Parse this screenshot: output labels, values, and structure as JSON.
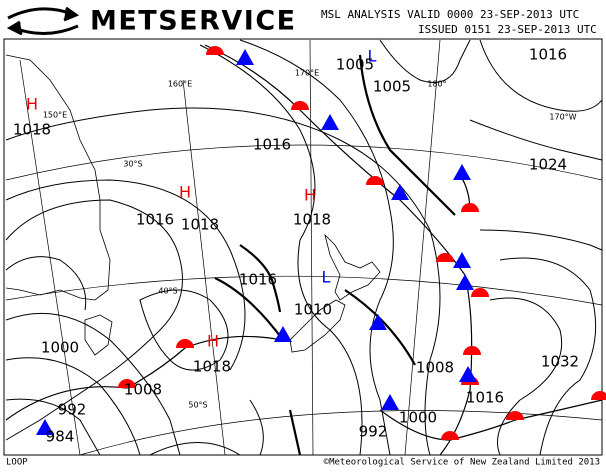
{
  "header": {
    "logo": "METSERVICE",
    "title": "MSL ANALYSIS VALID 0000 23-SEP-2013 UTC",
    "issued": "ISSUED 0151 23-SEP-2013 UTC"
  },
  "highs": [
    "H",
    "H",
    "H",
    "H"
  ],
  "lows": [
    "L",
    "L"
  ],
  "isobar_labels": [
    "1016",
    "1005",
    "1005",
    "1018",
    "1016",
    "1024",
    "1016",
    "1018",
    "1018",
    "1016",
    "1010",
    "1000",
    "1018",
    "1008",
    "1008",
    "1032",
    "1016",
    "992",
    "984",
    "1000",
    "992"
  ],
  "grid_labels": [
    "160°E",
    "170°E",
    "180°",
    "170°W",
    "30°S",
    "40°S",
    "50°S",
    "150°E"
  ],
  "footer": {
    "left": "LOOP",
    "right": "©Meteorological Service of New Zealand Limited 2013"
  }
}
